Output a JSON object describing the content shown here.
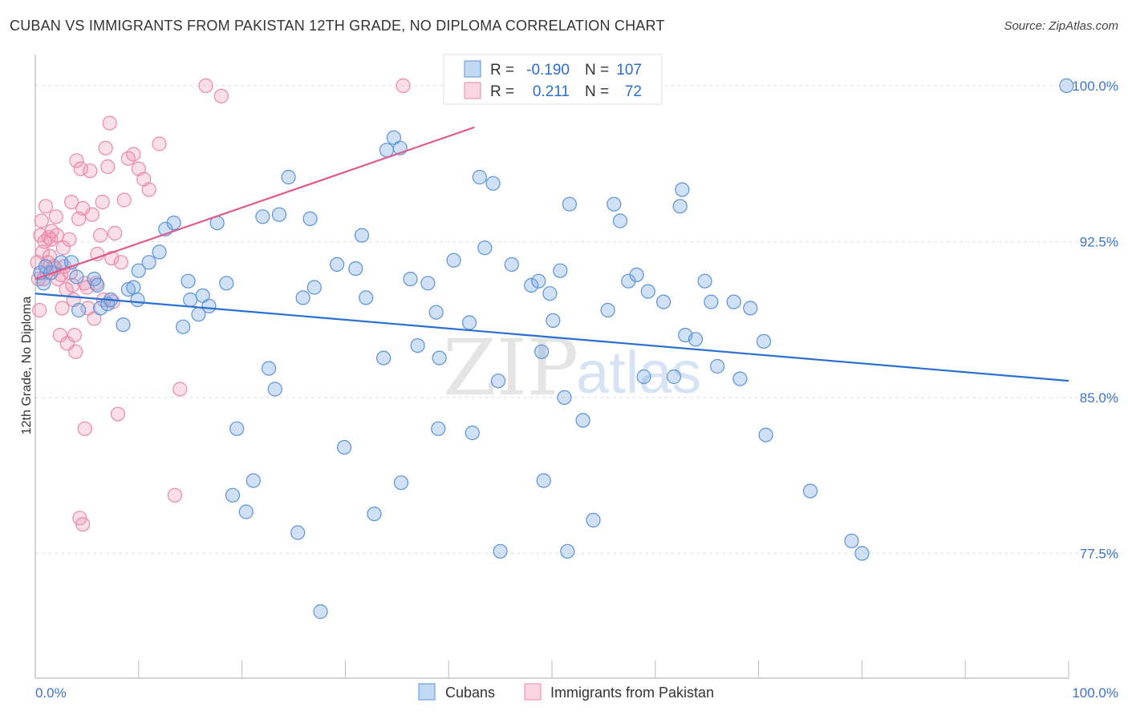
{
  "title": "CUBAN VS IMMIGRANTS FROM PAKISTAN 12TH GRADE, NO DIPLOMA CORRELATION CHART",
  "source": "Source: ZipAtlas.com",
  "watermark": {
    "zip": "ZIP",
    "atlas": "atlas"
  },
  "colors": {
    "blue_fill": "rgba(120,170,230,0.35)",
    "blue_stroke": "#5a93d6",
    "blue_line": "#2a6fcf",
    "pink_fill": "rgba(240,150,180,0.30)",
    "pink_stroke": "#e98aa8",
    "pink_line": "#e0598a",
    "tick_text": "#3b74c8",
    "grid": "#dddddd"
  },
  "legend": {
    "rows": [
      {
        "r_label": "R =",
        "r_value": "-0.190",
        "n_label": "N =",
        "n_value": "107"
      },
      {
        "r_label": "R =",
        "r_value": "0.211",
        "n_label": "N =",
        "n_value": "72"
      }
    ]
  },
  "chart_data": {
    "type": "scatter",
    "title": "CUBAN VS IMMIGRANTS FROM PAKISTAN 12TH GRADE, NO DIPLOMA CORRELATION CHART",
    "xlabel": "",
    "ylabel": "12th Grade, No Diploma",
    "xlim": [
      0,
      100
    ],
    "ylim": [
      71.5,
      101.5
    ],
    "x_tick_labels": [
      "0.0%",
      "100.0%"
    ],
    "y_ticks": [
      {
        "value": 100.0,
        "label": "100.0%"
      },
      {
        "value": 92.5,
        "label": "92.5%"
      },
      {
        "value": 85.0,
        "label": "85.0%"
      },
      {
        "value": 77.5,
        "label": "77.5%"
      }
    ],
    "series": [
      {
        "name": "Cubans",
        "r": -0.19,
        "n": 107,
        "trend": {
          "x": [
            0,
            100
          ],
          "y": [
            90.0,
            85.8
          ]
        },
        "points": [
          [
            0.5,
            91.0
          ],
          [
            0.8,
            90.5
          ],
          [
            1.0,
            91.3
          ],
          [
            1.5,
            91.0
          ],
          [
            2.5,
            91.5
          ],
          [
            3.5,
            91.5
          ],
          [
            4.0,
            90.8
          ],
          [
            4.2,
            89.2
          ],
          [
            5.7,
            90.7
          ],
          [
            6.0,
            90.4
          ],
          [
            6.3,
            89.3
          ],
          [
            7.0,
            89.5
          ],
          [
            7.3,
            89.7
          ],
          [
            8.5,
            88.5
          ],
          [
            9.0,
            90.2
          ],
          [
            9.5,
            90.3
          ],
          [
            9.9,
            89.7
          ],
          [
            10.0,
            91.1
          ],
          [
            11.0,
            91.5
          ],
          [
            12.0,
            92.0
          ],
          [
            12.6,
            93.1
          ],
          [
            13.4,
            93.4
          ],
          [
            14.3,
            88.4
          ],
          [
            14.8,
            90.6
          ],
          [
            15.0,
            89.7
          ],
          [
            15.8,
            89.0
          ],
          [
            16.2,
            89.9
          ],
          [
            16.8,
            89.4
          ],
          [
            17.6,
            93.4
          ],
          [
            18.5,
            90.5
          ],
          [
            19.1,
            80.3
          ],
          [
            19.5,
            83.5
          ],
          [
            20.4,
            79.5
          ],
          [
            21.1,
            81.0
          ],
          [
            22.0,
            93.7
          ],
          [
            22.6,
            86.4
          ],
          [
            23.2,
            85.4
          ],
          [
            23.6,
            93.8
          ],
          [
            24.5,
            95.6
          ],
          [
            25.4,
            78.5
          ],
          [
            25.9,
            89.8
          ],
          [
            26.6,
            93.6
          ],
          [
            27.0,
            90.3
          ],
          [
            27.6,
            74.7
          ],
          [
            29.2,
            91.4
          ],
          [
            29.9,
            82.6
          ],
          [
            31.0,
            91.2
          ],
          [
            31.6,
            92.8
          ],
          [
            32.0,
            89.8
          ],
          [
            32.8,
            79.4
          ],
          [
            33.7,
            86.9
          ],
          [
            34.0,
            96.9
          ],
          [
            34.7,
            97.5
          ],
          [
            35.3,
            97.0
          ],
          [
            35.4,
            80.9
          ],
          [
            36.3,
            90.7
          ],
          [
            37.0,
            87.5
          ],
          [
            38.0,
            90.5
          ],
          [
            38.8,
            89.1
          ],
          [
            39.0,
            83.5
          ],
          [
            39.1,
            86.9
          ],
          [
            40.5,
            91.6
          ],
          [
            42.0,
            88.6
          ],
          [
            42.3,
            83.3
          ],
          [
            43.0,
            95.6
          ],
          [
            43.5,
            92.2
          ],
          [
            44.3,
            95.3
          ],
          [
            44.8,
            85.8
          ],
          [
            45.0,
            77.6
          ],
          [
            46.1,
            91.4
          ],
          [
            48.0,
            90.4
          ],
          [
            48.7,
            90.6
          ],
          [
            49.0,
            87.2
          ],
          [
            49.2,
            81.0
          ],
          [
            49.8,
            90.0
          ],
          [
            50.1,
            88.7
          ],
          [
            50.8,
            91.1
          ],
          [
            51.2,
            85.0
          ],
          [
            51.5,
            77.6
          ],
          [
            51.7,
            94.3
          ],
          [
            53.0,
            83.9
          ],
          [
            54.0,
            79.1
          ],
          [
            55.4,
            89.2
          ],
          [
            56.0,
            94.3
          ],
          [
            56.6,
            93.5
          ],
          [
            57.4,
            90.6
          ],
          [
            58.2,
            90.9
          ],
          [
            58.9,
            86.0
          ],
          [
            59.3,
            90.1
          ],
          [
            60.8,
            89.6
          ],
          [
            61.8,
            86.0
          ],
          [
            62.4,
            94.2
          ],
          [
            62.6,
            95.0
          ],
          [
            62.9,
            88.0
          ],
          [
            63.9,
            87.8
          ],
          [
            64.8,
            90.6
          ],
          [
            65.4,
            89.6
          ],
          [
            66.0,
            86.5
          ],
          [
            67.6,
            89.6
          ],
          [
            68.2,
            85.9
          ],
          [
            69.2,
            89.3
          ],
          [
            70.5,
            87.7
          ],
          [
            70.7,
            83.2
          ],
          [
            75.0,
            80.5
          ],
          [
            79.0,
            78.1
          ],
          [
            80.0,
            77.5
          ],
          [
            99.8,
            100.0
          ]
        ]
      },
      {
        "name": "Immigrants from Pakistan",
        "r": 0.211,
        "n": 72,
        "trend": {
          "x": [
            0,
            42.5
          ],
          "y": [
            90.7,
            98.0
          ]
        },
        "points": [
          [
            0.2,
            91.5
          ],
          [
            0.3,
            90.7
          ],
          [
            0.4,
            89.2
          ],
          [
            0.5,
            92.8
          ],
          [
            0.6,
            93.5
          ],
          [
            0.7,
            92.0
          ],
          [
            0.8,
            90.7
          ],
          [
            1.0,
            94.2
          ],
          [
            1.2,
            91.5
          ],
          [
            1.3,
            92.7
          ],
          [
            1.5,
            92.6
          ],
          [
            1.6,
            93.0
          ],
          [
            1.8,
            91.3
          ],
          [
            2.0,
            93.7
          ],
          [
            2.2,
            90.7
          ],
          [
            2.4,
            88.0
          ],
          [
            2.5,
            90.9
          ],
          [
            2.6,
            89.3
          ],
          [
            2.8,
            91.3
          ],
          [
            3.0,
            90.2
          ],
          [
            3.1,
            87.6
          ],
          [
            3.3,
            92.6
          ],
          [
            3.5,
            94.4
          ],
          [
            3.7,
            89.7
          ],
          [
            3.8,
            88.0
          ],
          [
            3.9,
            87.2
          ],
          [
            4.0,
            96.4
          ],
          [
            4.2,
            93.6
          ],
          [
            4.4,
            96.0
          ],
          [
            4.6,
            94.1
          ],
          [
            4.8,
            90.5
          ],
          [
            5.0,
            90.3
          ],
          [
            5.1,
            89.3
          ],
          [
            5.3,
            95.9
          ],
          [
            5.5,
            93.8
          ],
          [
            5.7,
            88.8
          ],
          [
            6.0,
            91.9
          ],
          [
            6.3,
            92.8
          ],
          [
            6.5,
            94.4
          ],
          [
            6.8,
            97.0
          ],
          [
            7.0,
            96.1
          ],
          [
            7.2,
            98.2
          ],
          [
            7.4,
            91.7
          ],
          [
            7.5,
            89.6
          ],
          [
            7.7,
            92.9
          ],
          [
            8.0,
            84.2
          ],
          [
            8.3,
            91.5
          ],
          [
            8.6,
            94.5
          ],
          [
            9.0,
            96.5
          ],
          [
            9.5,
            96.7
          ],
          [
            10.0,
            96.0
          ],
          [
            10.5,
            95.5
          ],
          [
            11.0,
            95.0
          ],
          [
            12.0,
            97.2
          ],
          [
            13.5,
            80.3
          ],
          [
            14.0,
            85.4
          ],
          [
            16.5,
            100.0
          ],
          [
            18.0,
            99.5
          ],
          [
            35.6,
            100.0
          ],
          [
            4.3,
            79.2
          ],
          [
            4.6,
            78.9
          ],
          [
            4.8,
            83.5
          ],
          [
            2.1,
            92.8
          ],
          [
            2.7,
            92.2
          ],
          [
            3.4,
            91.0
          ],
          [
            1.9,
            91.2
          ],
          [
            1.1,
            91.0
          ],
          [
            0.9,
            92.5
          ],
          [
            1.4,
            91.8
          ],
          [
            5.9,
            90.5
          ],
          [
            6.6,
            89.7
          ],
          [
            3.6,
            90.4
          ]
        ]
      }
    ]
  },
  "bottom_legend": {
    "items": [
      {
        "label": "Cubans"
      },
      {
        "label": "Immigrants from Pakistan"
      }
    ]
  }
}
